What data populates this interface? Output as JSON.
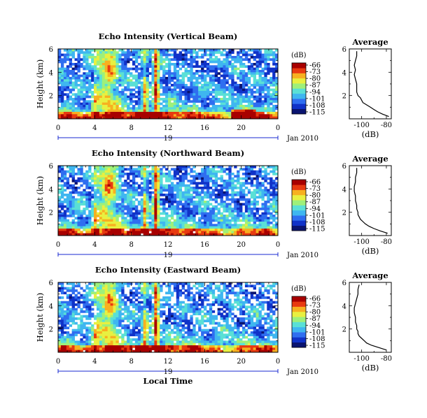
{
  "chart_data": [
    {
      "type": "heatmap",
      "title": "Echo Intensity (Vertical Beam)",
      "ylabel": "Height (km)",
      "xlabel": "",
      "x_ticks": [
        "0",
        "4",
        "8",
        "12",
        "16",
        "20",
        "0"
      ],
      "y_ticks": [
        "6",
        "4",
        "2"
      ],
      "xlim": [
        0,
        24
      ],
      "ylim": [
        0,
        6
      ],
      "date_label": "19",
      "date_suffix": "Jan 2010",
      "colorbar": {
        "unit": "(dB)",
        "ticks": [
          "-66",
          "-73",
          "-80",
          "-87",
          "-94",
          "-101",
          "-108",
          "-115"
        ],
        "range": [
          -115,
          -66
        ]
      },
      "profile": {
        "title": "Average",
        "xlabel": "(dB)",
        "x_ticks": [
          "-100",
          "-80"
        ],
        "y_ticks": [
          "6",
          "4",
          "2"
        ],
        "xlim": [
          -110,
          -76
        ],
        "ylim": [
          0,
          6
        ],
        "height": [
          0.2,
          0.4,
          0.6,
          0.8,
          1.0,
          1.2,
          1.4,
          1.6,
          1.8,
          2.0,
          2.3,
          2.6,
          3.0,
          3.4,
          3.8,
          4.2,
          4.6,
          5.0,
          5.4,
          5.8
        ],
        "value": [
          -78,
          -83,
          -87,
          -90,
          -93,
          -96,
          -99,
          -100,
          -101,
          -103,
          -104,
          -104,
          -104,
          -105,
          -106,
          -105,
          -106,
          -105,
          -104,
          -104
        ]
      }
    },
    {
      "type": "heatmap",
      "title": "Echo Intensity (Northward Beam)",
      "ylabel": "Height (km)",
      "xlabel": "",
      "x_ticks": [
        "0",
        "4",
        "8",
        "12",
        "16",
        "20",
        "0"
      ],
      "y_ticks": [
        "6",
        "4",
        "2"
      ],
      "xlim": [
        0,
        24
      ],
      "ylim": [
        0,
        6
      ],
      "date_label": "19",
      "date_suffix": "Jan 2010",
      "colorbar": {
        "unit": "(dB)",
        "ticks": [
          "-66",
          "-73",
          "-80",
          "-87",
          "-94",
          "-101",
          "-108",
          "-115"
        ],
        "range": [
          -115,
          -66
        ]
      },
      "profile": {
        "title": "Average",
        "xlabel": "(dB)",
        "x_ticks": [
          "-100",
          "-80"
        ],
        "y_ticks": [
          "6",
          "4",
          "2"
        ],
        "xlim": [
          -110,
          -76
        ],
        "ylim": [
          0,
          6
        ],
        "height": [
          0.2,
          0.4,
          0.6,
          0.8,
          1.0,
          1.2,
          1.4,
          1.6,
          1.8,
          2.0,
          2.3,
          2.6,
          3.0,
          3.4,
          3.8,
          4.2,
          4.6,
          5.0,
          5.4,
          5.8
        ],
        "value": [
          -79,
          -85,
          -90,
          -94,
          -97,
          -99,
          -101,
          -102,
          -103,
          -103,
          -104,
          -104,
          -105,
          -105,
          -106,
          -106,
          -105,
          -105,
          -104,
          -104
        ]
      }
    },
    {
      "type": "heatmap",
      "title": "Echo Intensity (Eastward Beam)",
      "ylabel": "Height (km)",
      "xlabel": "Local Time",
      "x_ticks": [
        "0",
        "4",
        "8",
        "12",
        "16",
        "20",
        "0"
      ],
      "y_ticks": [
        "6",
        "4",
        "2"
      ],
      "xlim": [
        0,
        24
      ],
      "ylim": [
        0,
        6
      ],
      "date_label": "19",
      "date_suffix": "Jan 2010",
      "colorbar": {
        "unit": "(dB)",
        "ticks": [
          "-66",
          "-73",
          "-80",
          "-87",
          "-94",
          "-101",
          "-108",
          "-115"
        ],
        "range": [
          -115,
          -66
        ]
      },
      "profile": {
        "title": "Average",
        "xlabel": "(dB)",
        "x_ticks": [
          "-100",
          "-80"
        ],
        "y_ticks": [
          "6",
          "4",
          "2"
        ],
        "xlim": [
          -110,
          -76
        ],
        "ylim": [
          0,
          6
        ],
        "height": [
          0.2,
          0.4,
          0.6,
          0.8,
          1.0,
          1.2,
          1.4,
          1.6,
          1.8,
          2.0,
          2.3,
          2.6,
          3.0,
          3.4,
          3.8,
          4.2,
          4.6,
          5.0,
          5.4,
          5.8
        ],
        "value": [
          -80,
          -86,
          -92,
          -96,
          -98,
          -100,
          -102,
          -103,
          -103,
          -104,
          -104,
          -105,
          -105,
          -106,
          -106,
          -105,
          -104,
          -103,
          -103,
          -102
        ]
      }
    }
  ],
  "colors": {
    "colormap": [
      "#0a1470",
      "#1032c8",
      "#2f6ef0",
      "#3fb6f0",
      "#5ae0d6",
      "#9ef07a",
      "#e8f040",
      "#f7b020",
      "#e83a10",
      "#a80000"
    ],
    "axis": "#000000",
    "date_line": "#1a2ad0"
  }
}
